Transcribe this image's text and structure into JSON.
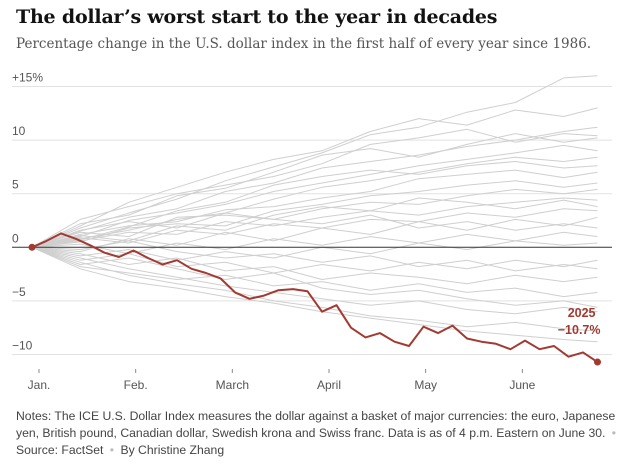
{
  "header": {
    "title": "The dollar’s worst start to the year in decades",
    "subtitle": "Percentage change in the U.S. dollar index in the first half of every year since 1986."
  },
  "chart_data": {
    "type": "line",
    "title": "The dollar’s worst start to the year in decades",
    "subtitle": "Percentage change in the U.S. dollar index in the first half of every year since 1986.",
    "ylim": [
      -12,
      17
    ],
    "xlim": [
      0,
      6
    ],
    "yticks": [
      {
        "value": 15,
        "label": "+15%"
      },
      {
        "value": 10,
        "label": "10"
      },
      {
        "value": 5,
        "label": "5"
      },
      {
        "value": 0,
        "label": "0"
      },
      {
        "value": -5,
        "label": "−5"
      },
      {
        "value": -10,
        "label": "−10"
      }
    ],
    "xticks": [
      {
        "value": 0,
        "label": "Jan."
      },
      {
        "value": 1,
        "label": "Feb."
      },
      {
        "value": 2,
        "label": "March"
      },
      {
        "value": 3,
        "label": "April"
      },
      {
        "value": 4,
        "label": "May"
      },
      {
        "value": 5,
        "label": "June"
      }
    ],
    "grid": true,
    "highlight": {
      "year_label": "2025",
      "value_label": "−10.7%",
      "color": "#a33a32",
      "x": [
        0,
        0.15,
        0.3,
        0.45,
        0.6,
        0.75,
        0.9,
        1.05,
        1.2,
        1.35,
        1.5,
        1.65,
        1.8,
        1.95,
        2.1,
        2.25,
        2.4,
        2.55,
        2.7,
        2.85,
        3.0,
        3.15,
        3.3,
        3.45,
        3.6,
        3.75,
        3.9,
        4.05,
        4.2,
        4.35,
        4.5,
        4.65,
        4.8,
        4.95,
        5.1,
        5.25,
        5.4,
        5.55,
        5.7,
        5.85
      ],
      "y": [
        0,
        0.6,
        1.3,
        0.8,
        0.2,
        -0.5,
        -0.9,
        -0.3,
        -1.0,
        -1.6,
        -1.2,
        -2.0,
        -2.4,
        -2.9,
        -4.2,
        -4.8,
        -4.5,
        -4.0,
        -3.9,
        -4.1,
        -6.0,
        -5.4,
        -7.5,
        -8.4,
        -8.0,
        -8.8,
        -9.2,
        -7.4,
        -8.0,
        -7.3,
        -8.5,
        -8.8,
        -9.0,
        -9.5,
        -8.7,
        -9.5,
        -9.2,
        -10.2,
        -9.8,
        -10.7
      ]
    },
    "background_series": [
      {
        "x": [
          0,
          0.5,
          1,
          1.5,
          2,
          2.5,
          3,
          3.5,
          4,
          4.5,
          5,
          5.5,
          5.85
        ],
        "y": [
          0,
          1.8,
          3.2,
          4.5,
          6.2,
          7.5,
          8.8,
          10.5,
          11.2,
          12.6,
          13.5,
          15.8,
          16.0
        ]
      },
      {
        "x": [
          0,
          0.5,
          1,
          1.5,
          2,
          2.5,
          3,
          3.5,
          4,
          4.5,
          5,
          5.5,
          5.85
        ],
        "y": [
          0,
          1.5,
          2.8,
          3.6,
          5.2,
          6.0,
          7.4,
          8.0,
          8.6,
          9.4,
          10.0,
          10.8,
          11.2
        ]
      },
      {
        "x": [
          0,
          0.5,
          1,
          1.5,
          2,
          2.5,
          3,
          3.5,
          4,
          4.5,
          5,
          5.5,
          5.85
        ],
        "y": [
          0,
          2.2,
          3.0,
          4.8,
          5.5,
          7.0,
          8.6,
          9.2,
          8.4,
          9.6,
          10.6,
          9.8,
          10.2
        ]
      },
      {
        "x": [
          0,
          0.5,
          1,
          1.5,
          2,
          2.5,
          3,
          3.5,
          4,
          4.5,
          5,
          5.5,
          5.85
        ],
        "y": [
          0,
          1.0,
          2.5,
          3.2,
          4.0,
          5.2,
          6.0,
          6.8,
          7.6,
          8.2,
          8.8,
          9.5,
          9.0
        ]
      },
      {
        "x": [
          0,
          0.5,
          1,
          1.5,
          2,
          2.5,
          3,
          3.5,
          4,
          4.5,
          5,
          5.5,
          5.85
        ],
        "y": [
          0,
          0.8,
          1.6,
          2.6,
          3.2,
          4.5,
          5.6,
          6.2,
          7.0,
          7.8,
          8.4,
          8.0,
          8.4
        ]
      },
      {
        "x": [
          0,
          0.5,
          1,
          1.5,
          2,
          2.5,
          3,
          3.5,
          4,
          4.5,
          5,
          5.5,
          5.85
        ],
        "y": [
          0,
          1.2,
          2.0,
          2.4,
          3.5,
          3.8,
          4.6,
          5.2,
          6.4,
          6.8,
          7.2,
          6.5,
          7.0
        ]
      },
      {
        "x": [
          0,
          0.5,
          1,
          1.5,
          2,
          2.5,
          3,
          3.5,
          4,
          4.5,
          5,
          5.5,
          5.85
        ],
        "y": [
          0,
          0.5,
          1.8,
          2.2,
          2.0,
          3.4,
          4.0,
          4.8,
          5.2,
          5.8,
          6.2,
          5.6,
          6.0
        ]
      },
      {
        "x": [
          0,
          0.5,
          1,
          1.5,
          2,
          2.5,
          3,
          3.5,
          4,
          4.5,
          5,
          5.5,
          5.85
        ],
        "y": [
          0,
          1.4,
          1.0,
          2.8,
          3.0,
          2.6,
          3.6,
          4.2,
          4.0,
          4.8,
          5.4,
          5.0,
          5.4
        ]
      },
      {
        "x": [
          0,
          0.5,
          1,
          1.5,
          2,
          2.5,
          3,
          3.5,
          4,
          4.5,
          5,
          5.5,
          5.85
        ],
        "y": [
          0,
          0.6,
          1.4,
          1.2,
          2.4,
          2.0,
          2.8,
          3.4,
          3.0,
          3.8,
          4.2,
          4.6,
          4.4
        ]
      },
      {
        "x": [
          0,
          0.5,
          1,
          1.5,
          2,
          2.5,
          3,
          3.5,
          4,
          4.5,
          5,
          5.5,
          5.85
        ],
        "y": [
          0,
          0.9,
          0.4,
          1.6,
          1.2,
          2.2,
          1.8,
          2.6,
          2.4,
          3.2,
          2.8,
          3.6,
          3.4
        ]
      },
      {
        "x": [
          0,
          0.5,
          1,
          1.5,
          2,
          2.5,
          3,
          3.5,
          4,
          4.5,
          5,
          5.5,
          5.85
        ],
        "y": [
          0,
          -0.4,
          0.8,
          0.2,
          1.4,
          0.6,
          1.8,
          1.2,
          2.4,
          1.6,
          2.6,
          2.0,
          2.8
        ]
      },
      {
        "x": [
          0,
          0.5,
          1,
          1.5,
          2,
          2.5,
          3,
          3.5,
          4,
          4.5,
          5,
          5.5,
          5.85
        ],
        "y": [
          0,
          1.6,
          2.4,
          1.8,
          3.2,
          2.6,
          2.2,
          3.0,
          1.8,
          2.4,
          1.6,
          2.2,
          1.8
        ]
      },
      {
        "x": [
          0,
          0.5,
          1,
          1.5,
          2,
          2.5,
          3,
          3.5,
          4,
          4.5,
          5,
          5.5,
          5.85
        ],
        "y": [
          0,
          0.3,
          -0.6,
          0.4,
          -0.2,
          0.8,
          0.2,
          1.0,
          0.4,
          1.2,
          0.6,
          1.4,
          1.0
        ]
      },
      {
        "x": [
          0,
          0.5,
          1,
          1.5,
          2,
          2.5,
          3,
          3.5,
          4,
          4.5,
          5,
          5.5,
          5.85
        ],
        "y": [
          0,
          -0.8,
          -0.2,
          -1.2,
          -0.4,
          -1.0,
          0.0,
          -0.6,
          0.4,
          -0.2,
          0.6,
          0.2,
          0.4
        ]
      },
      {
        "x": [
          0,
          0.5,
          1,
          1.5,
          2,
          2.5,
          3,
          3.5,
          4,
          4.5,
          5,
          5.5,
          5.85
        ],
        "y": [
          0,
          -1.2,
          -0.6,
          -1.8,
          -1.4,
          -2.4,
          -1.6,
          -2.2,
          -1.4,
          -2.0,
          -1.2,
          -1.8,
          -1.2
        ]
      },
      {
        "x": [
          0,
          0.5,
          1,
          1.5,
          2,
          2.5,
          3,
          3.5,
          4,
          4.5,
          5,
          5.5,
          5.85
        ],
        "y": [
          0,
          -0.6,
          -1.6,
          -1.0,
          -2.2,
          -1.8,
          -3.0,
          -2.4,
          -2.8,
          -3.4,
          -2.6,
          -3.2,
          -2.8
        ]
      },
      {
        "x": [
          0,
          0.5,
          1,
          1.5,
          2,
          2.5,
          3,
          3.5,
          4,
          4.5,
          5,
          5.5,
          5.85
        ],
        "y": [
          0,
          -1.8,
          -2.4,
          -3.0,
          -2.6,
          -3.6,
          -3.2,
          -4.0,
          -3.4,
          -4.2,
          -3.8,
          -4.6,
          -4.2
        ]
      },
      {
        "x": [
          0,
          0.5,
          1,
          1.5,
          2,
          2.5,
          3,
          3.5,
          4,
          4.5,
          5,
          5.5,
          5.85
        ],
        "y": [
          0,
          -1.0,
          -2.0,
          -2.8,
          -3.6,
          -4.2,
          -4.8,
          -5.4,
          -5.0,
          -5.8,
          -6.2,
          -5.6,
          -6.0
        ]
      },
      {
        "x": [
          0,
          0.5,
          1,
          1.5,
          2,
          2.5,
          3,
          3.5,
          4,
          4.5,
          5,
          5.5,
          5.85
        ],
        "y": [
          0,
          -2.0,
          -3.2,
          -3.8,
          -4.6,
          -5.2,
          -6.0,
          -6.6,
          -7.2,
          -7.8,
          -8.2,
          -8.6,
          -8.8
        ]
      },
      {
        "x": [
          0,
          0.5,
          1,
          1.5,
          2,
          2.5,
          3,
          3.5,
          4,
          4.5,
          5,
          5.5,
          5.85
        ],
        "y": [
          0,
          -1.4,
          -2.6,
          -3.4,
          -4.0,
          -5.0,
          -5.6,
          -6.4,
          -6.8,
          -7.4,
          -7.0,
          -7.6,
          -7.8
        ]
      },
      {
        "x": [
          0,
          0.5,
          1,
          1.5,
          2,
          2.5,
          3,
          3.5,
          4,
          4.5,
          5,
          5.5,
          5.85
        ],
        "y": [
          0,
          2.6,
          3.8,
          5.0,
          5.8,
          6.6,
          7.8,
          9.6,
          10.2,
          11.0,
          9.8,
          10.6,
          10.4
        ]
      },
      {
        "x": [
          0,
          0.5,
          1,
          1.5,
          2,
          2.5,
          3,
          3.5,
          4,
          4.5,
          5,
          5.5,
          5.85
        ],
        "y": [
          0,
          2.0,
          4.2,
          5.6,
          7.0,
          8.2,
          9.0,
          10.8,
          12.0,
          11.4,
          12.8,
          12.2,
          13.0
        ]
      },
      {
        "x": [
          0,
          0.5,
          1,
          1.5,
          2,
          2.5,
          3,
          3.5,
          4,
          4.5,
          5,
          5.5,
          5.85
        ],
        "y": [
          0,
          1.1,
          0.6,
          2.0,
          1.6,
          3.0,
          3.8,
          3.4,
          4.6,
          4.2,
          3.6,
          4.4,
          3.8
        ]
      },
      {
        "x": [
          0,
          0.5,
          1,
          1.5,
          2,
          2.5,
          3,
          3.5,
          4,
          4.5,
          5,
          5.5,
          5.85
        ],
        "y": [
          0,
          -0.2,
          0.6,
          -0.4,
          -1.0,
          -0.6,
          -1.4,
          -0.8,
          -1.8,
          -1.2,
          -2.2,
          -1.6,
          -2.0
        ]
      },
      {
        "x": [
          0,
          0.5,
          1,
          1.5,
          2,
          2.5,
          3,
          3.5,
          4,
          4.5,
          5,
          5.5,
          5.85
        ],
        "y": [
          0,
          0.7,
          1.9,
          3.4,
          4.2,
          5.8,
          6.6,
          7.2,
          6.8,
          7.6,
          8.0,
          7.4,
          7.6
        ]
      },
      {
        "x": [
          0,
          0.5,
          1,
          1.5,
          2,
          2.5,
          3,
          3.5,
          4,
          4.5,
          5,
          5.5,
          5.85
        ],
        "y": [
          0,
          -1.6,
          -1.0,
          -2.0,
          -3.0,
          -2.4,
          -3.8,
          -4.4,
          -4.0,
          -4.8,
          -5.4,
          -5.0,
          -5.6
        ]
      }
    ]
  },
  "notes": {
    "text": "Notes: The ICE U.S. Dollar Index measures the dollar against a basket of major currencies: the euro, Japanese yen, British pound, Canadian dollar, Swedish krona and Swiss franc. Data is as of 4 p.m. Eastern on June 30.",
    "source": "Source: FactSet",
    "byline": "By Christine Zhang"
  }
}
